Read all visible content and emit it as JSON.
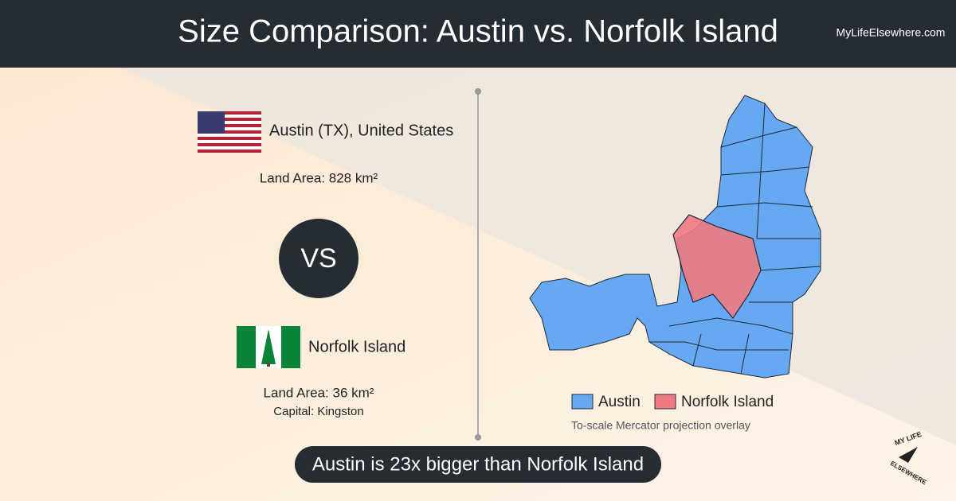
{
  "header": {
    "title": "Size Comparison: Austin vs. Norfolk Island",
    "site": "MyLifeElsewhere.com"
  },
  "first": {
    "name": "Austin (TX), United States",
    "area": "Land Area: 828 km²"
  },
  "versus": "VS",
  "second": {
    "name": "Norfolk Island",
    "area": "Land Area: 36 km²",
    "capital": "Capital: Kingston"
  },
  "legend": {
    "items": [
      "Austin",
      "Norfolk Island"
    ],
    "note": "To-scale Mercator projection overlay"
  },
  "summary": "Austin is 23x bigger than Norfolk Island",
  "logo": {
    "top": "MY LIFE",
    "bottom": "ELSEWHERE"
  }
}
